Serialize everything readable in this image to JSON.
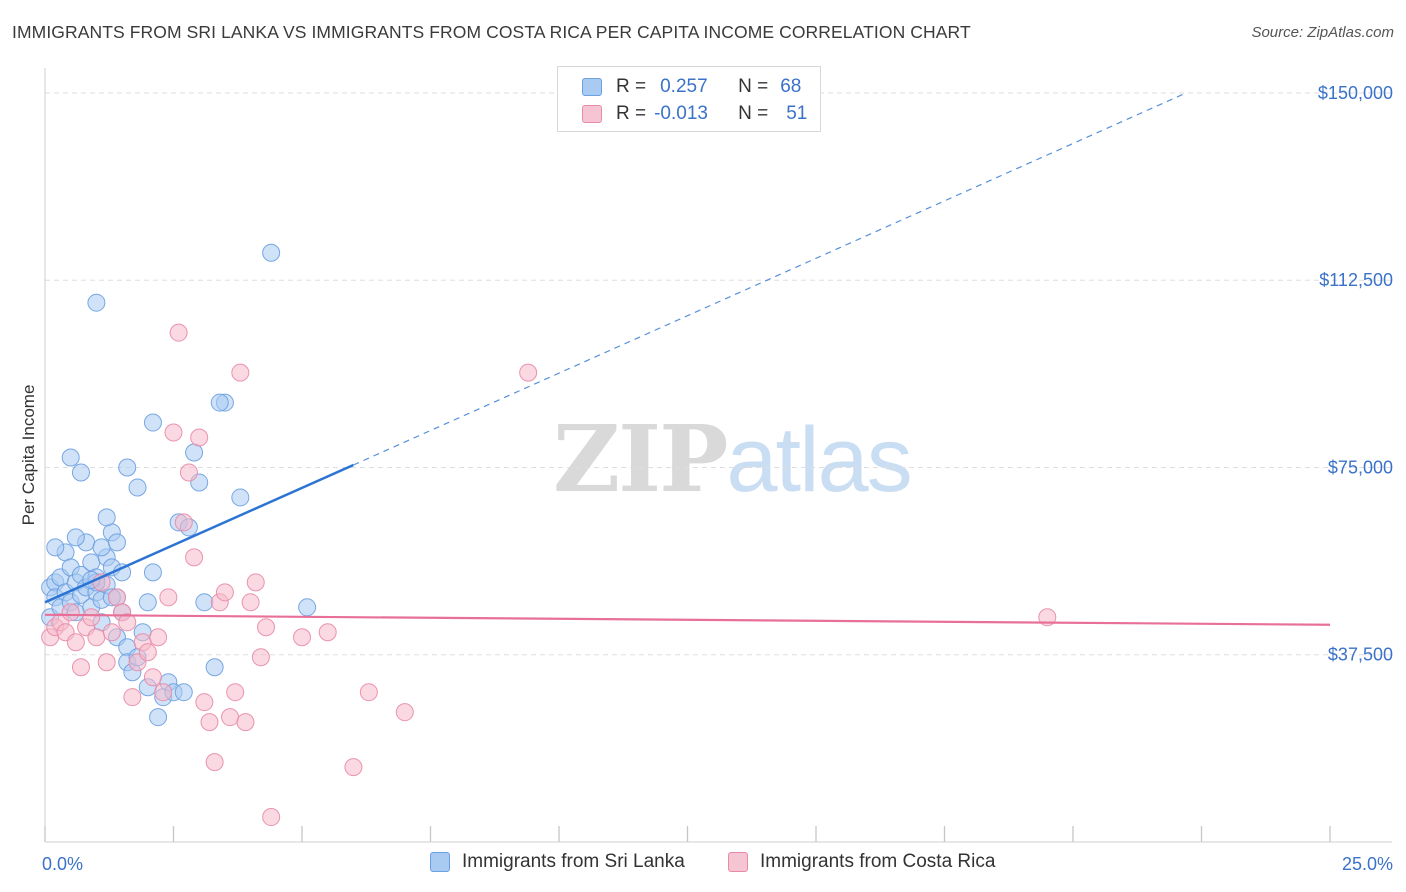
{
  "title": "IMMIGRANTS FROM SRI LANKA VS IMMIGRANTS FROM COSTA RICA PER CAPITA INCOME CORRELATION CHART",
  "source": "Source: ZipAtlas.com",
  "watermark": {
    "zip": "ZIP",
    "atlas": "atlas"
  },
  "legend": {
    "series1": {
      "r_label": "R =",
      "r_value": "0.257",
      "n_label": "N =",
      "n_value": "68"
    },
    "series2": {
      "r_label": "R =",
      "r_value": "-0.013",
      "n_label": "N =",
      "n_value": "51"
    }
  },
  "colors": {
    "blue_fill": "#a9cbf2",
    "blue_stroke": "#6a9fe0",
    "blue_line": "#2c74d4",
    "pink_fill": "#f5b9cb",
    "pink_stroke": "#e88aa7",
    "pink_line": "#e86f97",
    "tick_text": "#3a72c9",
    "grid": "#dedede"
  },
  "chart_data": {
    "type": "scatter",
    "title": "IMMIGRANTS FROM SRI LANKA VS IMMIGRANTS FROM COSTA RICA PER CAPITA INCOME CORRELATION CHART",
    "xlabel": "",
    "ylabel": "Per Capita Income",
    "xlim": [
      0,
      25
    ],
    "ylim": [
      0,
      155000
    ],
    "x_tick_labels": [
      "0.0%",
      "25.0%"
    ],
    "y_ticks": [
      37500,
      75000,
      112500,
      150000
    ],
    "y_tick_labels": [
      "$37,500",
      "$75,000",
      "$112,500",
      "$150,000"
    ],
    "series": [
      {
        "name": "Immigrants from Sri Lanka",
        "color": "blue",
        "trend": {
          "x0": 0,
          "y0": 48000,
          "x1": 6.0,
          "y1": 75500,
          "dash_to_x": 22.2,
          "dash_to_y": 150000
        },
        "points": [
          [
            0.1,
            45000
          ],
          [
            0.1,
            51000
          ],
          [
            0.2,
            52000
          ],
          [
            0.2,
            49000
          ],
          [
            0.3,
            47000
          ],
          [
            0.3,
            53000
          ],
          [
            0.4,
            50000
          ],
          [
            0.4,
            58000
          ],
          [
            0.5,
            48000
          ],
          [
            0.5,
            55000
          ],
          [
            0.6,
            52000
          ],
          [
            0.6,
            46000
          ],
          [
            0.7,
            49500
          ],
          [
            0.7,
            53500
          ],
          [
            0.8,
            51000
          ],
          [
            0.8,
            60000
          ],
          [
            0.9,
            47000
          ],
          [
            0.9,
            56000
          ],
          [
            1.0,
            50000
          ],
          [
            1.0,
            53000
          ],
          [
            1.1,
            44000
          ],
          [
            1.1,
            48500
          ],
          [
            1.2,
            57000
          ],
          [
            1.2,
            51500
          ],
          [
            1.3,
            55000
          ],
          [
            1.3,
            62000
          ],
          [
            1.4,
            49000
          ],
          [
            1.4,
            41000
          ],
          [
            1.5,
            46000
          ],
          [
            1.5,
            54000
          ],
          [
            1.6,
            39000
          ],
          [
            1.6,
            36000
          ],
          [
            1.7,
            34000
          ],
          [
            1.8,
            37000
          ],
          [
            1.9,
            42000
          ],
          [
            2.0,
            48000
          ],
          [
            2.0,
            31000
          ],
          [
            2.1,
            54000
          ],
          [
            2.2,
            25000
          ],
          [
            2.3,
            29000
          ],
          [
            2.4,
            32000
          ],
          [
            2.5,
            30000
          ],
          [
            2.6,
            64000
          ],
          [
            2.7,
            30000
          ],
          [
            2.8,
            63000
          ],
          [
            3.0,
            72000
          ],
          [
            3.1,
            48000
          ],
          [
            3.3,
            35000
          ],
          [
            3.5,
            88000
          ],
          [
            3.8,
            69000
          ],
          [
            0.2,
            59000
          ],
          [
            0.5,
            77000
          ],
          [
            0.6,
            61000
          ],
          [
            0.7,
            74000
          ],
          [
            1.0,
            52000
          ],
          [
            1.1,
            59000
          ],
          [
            1.2,
            65000
          ],
          [
            1.4,
            60000
          ],
          [
            1.6,
            75000
          ],
          [
            1.8,
            71000
          ],
          [
            1.0,
            108000
          ],
          [
            2.1,
            84000
          ],
          [
            2.9,
            78000
          ],
          [
            3.4,
            88000
          ],
          [
            4.4,
            118000
          ],
          [
            5.1,
            47000
          ],
          [
            1.3,
            49000
          ],
          [
            0.9,
            52500
          ]
        ]
      },
      {
        "name": "Immigrants from Costa Rica",
        "color": "pink",
        "trend": {
          "x0": 0,
          "y0": 45500,
          "x1": 25,
          "y1": 43500
        },
        "points": [
          [
            0.1,
            41000
          ],
          [
            0.2,
            43000
          ],
          [
            0.3,
            44000
          ],
          [
            0.4,
            42000
          ],
          [
            0.5,
            46000
          ],
          [
            0.6,
            40000
          ],
          [
            0.7,
            35000
          ],
          [
            0.8,
            43000
          ],
          [
            0.9,
            45000
          ],
          [
            1.0,
            41000
          ],
          [
            1.1,
            52000
          ],
          [
            1.2,
            36000
          ],
          [
            1.3,
            42000
          ],
          [
            1.4,
            49000
          ],
          [
            1.5,
            46000
          ],
          [
            1.6,
            44000
          ],
          [
            1.7,
            29000
          ],
          [
            1.8,
            36000
          ],
          [
            1.9,
            40000
          ],
          [
            2.0,
            38000
          ],
          [
            2.1,
            33000
          ],
          [
            2.2,
            41000
          ],
          [
            2.3,
            30000
          ],
          [
            2.4,
            49000
          ],
          [
            2.5,
            82000
          ],
          [
            2.6,
            102000
          ],
          [
            2.7,
            64000
          ],
          [
            2.8,
            74000
          ],
          [
            2.9,
            57000
          ],
          [
            3.0,
            81000
          ],
          [
            3.1,
            28000
          ],
          [
            3.2,
            24000
          ],
          [
            3.3,
            16000
          ],
          [
            3.4,
            48000
          ],
          [
            3.5,
            50000
          ],
          [
            3.6,
            25000
          ],
          [
            3.7,
            30000
          ],
          [
            3.8,
            94000
          ],
          [
            3.9,
            24000
          ],
          [
            4.0,
            48000
          ],
          [
            4.1,
            52000
          ],
          [
            4.2,
            37000
          ],
          [
            4.3,
            43000
          ],
          [
            4.4,
            5000
          ],
          [
            5.0,
            41000
          ],
          [
            5.5,
            42000
          ],
          [
            6.0,
            15000
          ],
          [
            6.3,
            30000
          ],
          [
            7.0,
            26000
          ],
          [
            9.4,
            94000
          ],
          [
            19.5,
            45000
          ]
        ]
      }
    ]
  },
  "bottom_legend": {
    "item1": "Immigrants from Sri Lanka",
    "item2": "Immigrants from Costa Rica"
  }
}
